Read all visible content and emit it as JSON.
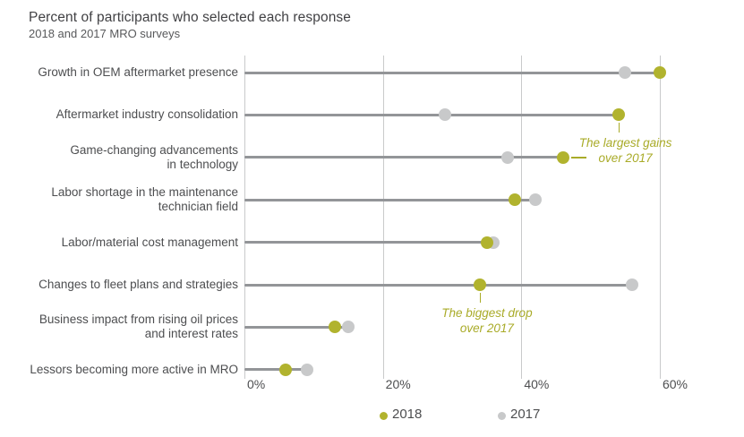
{
  "header": {
    "title": "Percent of participants who selected each response",
    "subtitle": "2018 and 2017 MRO surveys"
  },
  "chart_data": {
    "type": "dumbbell-dot",
    "title": "Percent of participants who selected each response",
    "subtitle": "2018 and 2017 MRO surveys",
    "categories": [
      "Growth in OEM aftermarket presence",
      "Aftermarket industry consolidation",
      "Game-changing advancements in technology",
      "Labor shortage in the maintenance technician field",
      "Labor/material cost management",
      "Changes to fleet plans and strategies",
      "Business impact from rising oil prices and interest rates",
      "Lessors becoming more active in MRO"
    ],
    "category_lines": [
      [
        "Growth in OEM aftermarket presence"
      ],
      [
        "Aftermarket industry consolidation"
      ],
      [
        "Game-changing advancements",
        "in technology"
      ],
      [
        "Labor shortage in the maintenance",
        "technician field"
      ],
      [
        "Labor/material cost management"
      ],
      [
        "Changes to fleet plans and strategies"
      ],
      [
        "Business impact from rising oil prices",
        "and interest rates"
      ],
      [
        "Lessors becoming more active in MRO"
      ]
    ],
    "series": [
      {
        "name": "2018",
        "color": "#b1b32e",
        "values": [
          60,
          54,
          46,
          39,
          35,
          34,
          13,
          6
        ]
      },
      {
        "name": "2017",
        "color": "#c8c9ca",
        "values": [
          55,
          29,
          38,
          42,
          36,
          56,
          15,
          9
        ]
      }
    ],
    "x_ticks": [
      "0%",
      "20%",
      "40%",
      "60%"
    ],
    "x_tick_values": [
      0,
      20,
      40,
      60
    ],
    "xlim": [
      0,
      65
    ],
    "grid": "vertical-only",
    "legend_position": "bottom",
    "annotations": [
      {
        "lines": [
          "The largest gains",
          "over 2017"
        ],
        "anchor_row": 1,
        "dash_row": 2,
        "series": "2018"
      },
      {
        "lines": [
          "The biggest drop",
          "over 2017"
        ],
        "anchor_row": 5,
        "series": "2018"
      }
    ],
    "colors": {
      "accent_2018": "#b1b32e",
      "gray_2017": "#c8c9ca",
      "connector_line": "#939598",
      "gridline": "#c9cacb",
      "annotation_text": "#a9ab28"
    }
  },
  "legend": {
    "items": [
      {
        "label": "2018",
        "color": "#b1b32e"
      },
      {
        "label": "2017",
        "color": "#c8c9ca"
      }
    ]
  }
}
